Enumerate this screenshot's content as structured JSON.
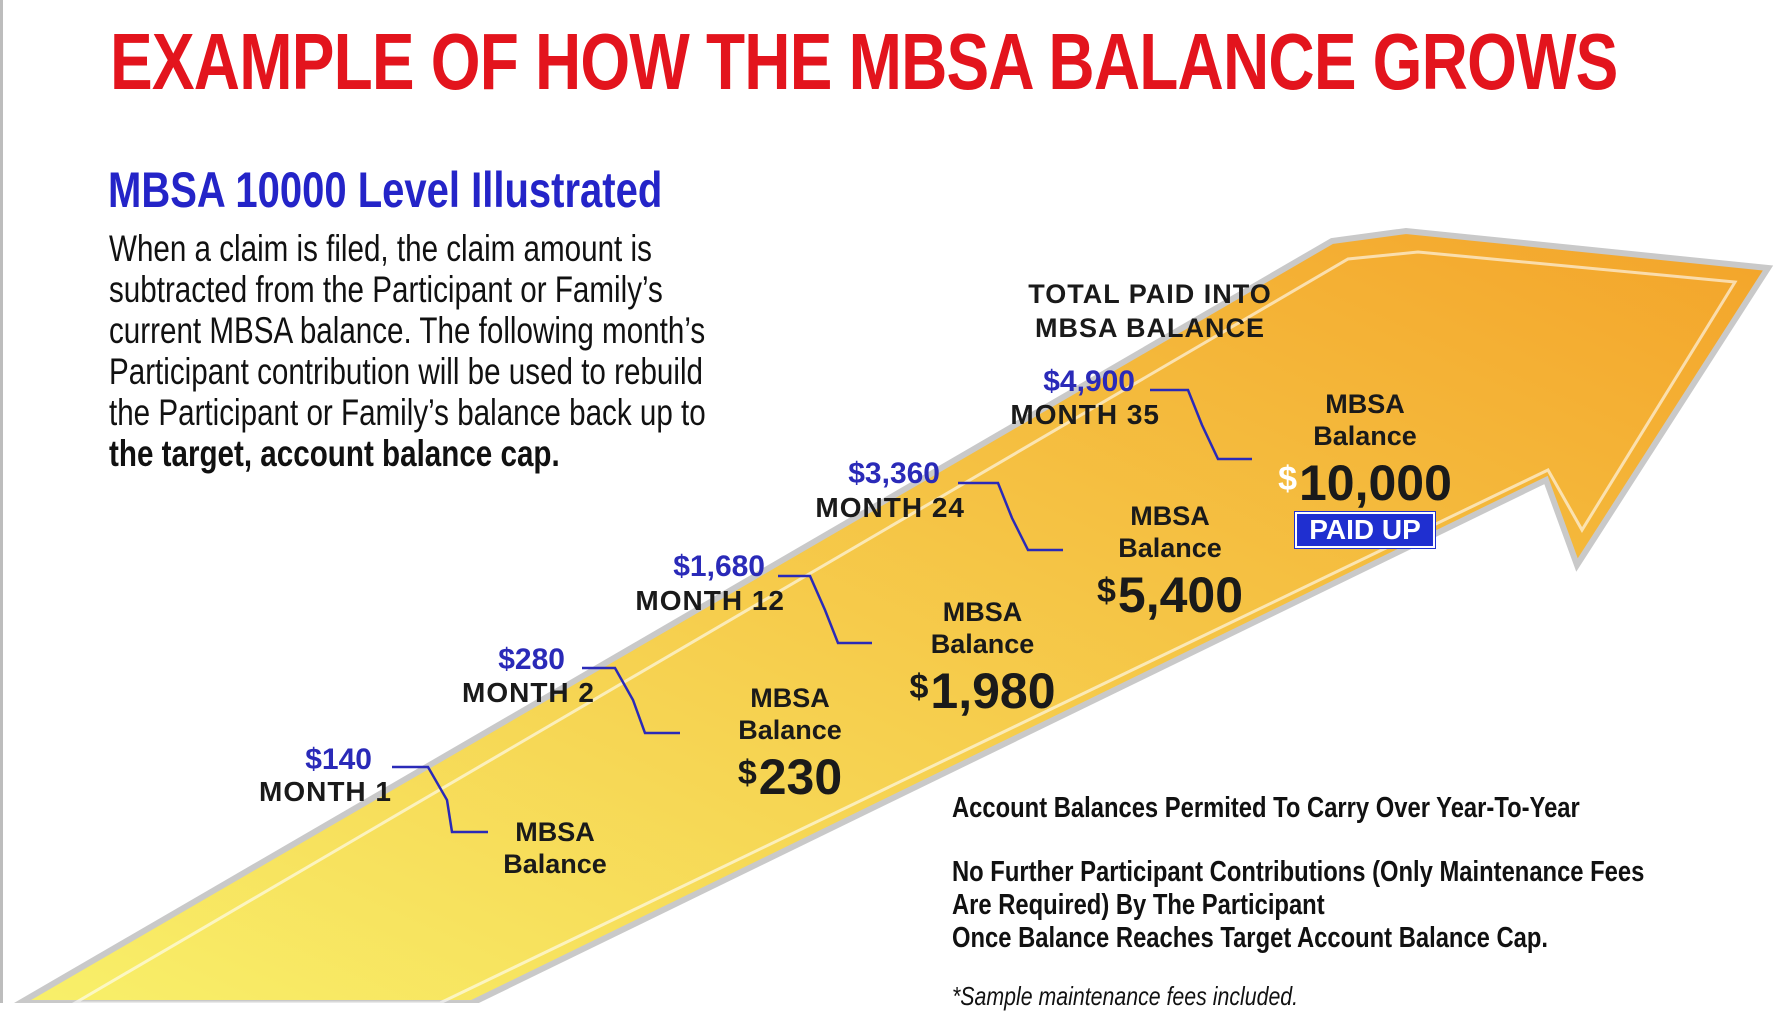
{
  "title": "EXAMPLE OF HOW THE MBSA BALANCE GROWS",
  "subtitle": "MBSA 10000 Level Illustrated",
  "description": {
    "text": "When a claim is filed, the claim amount is subtracted from the Participant or Family’s current MBSA  balance. The following month’s Participant contribution will be used to rebuild the Participant or Family’s balance back up to ",
    "bold_text": "the target, account balance cap."
  },
  "total_label": [
    "TOTAL PAID INTO",
    "MBSA BALANCE"
  ],
  "milestones": [
    {
      "amount": "$140",
      "month": "MONTH 1",
      "balance_label": [
        "MBSA",
        "Balance"
      ],
      "balance_value": ""
    },
    {
      "amount": "$280",
      "month": "MONTH 2",
      "balance_label": [
        "MBSA",
        "Balance"
      ],
      "balance_value": "230"
    },
    {
      "amount": "$1,680",
      "month": "MONTH 12",
      "balance_label": [
        "MBSA",
        "Balance"
      ],
      "balance_value": "1,980"
    },
    {
      "amount": "$3,360",
      "month": "MONTH 24",
      "balance_label": [
        "MBSA",
        "Balance"
      ],
      "balance_value": "5,400"
    },
    {
      "amount": "$4,900",
      "month": "MONTH 35",
      "balance_label": [
        "MBSA",
        "Balance"
      ],
      "balance_value": "10,000"
    }
  ],
  "currency_symbol": "$",
  "paid_up_badge": "PAID UP",
  "notes": {
    "carry_over": "Account Balances Permited To Carry Over Year-To-Year",
    "no_further": [
      "No Further Participant Contributions (Only Maintenance Fees",
      "Are Required) By The Participant",
      "Once Balance Reaches Target Account Balance Cap."
    ],
    "sample": "*Sample maintenance fees included."
  },
  "colors": {
    "title": "#e3141d",
    "subtitle": "#2424c8",
    "amount": "#2a2ab8",
    "arrow_light": "#f8f06a",
    "arrow_dark": "#f3a42a",
    "connector": "#2a2ab8",
    "badge": "#1f2fd0"
  }
}
